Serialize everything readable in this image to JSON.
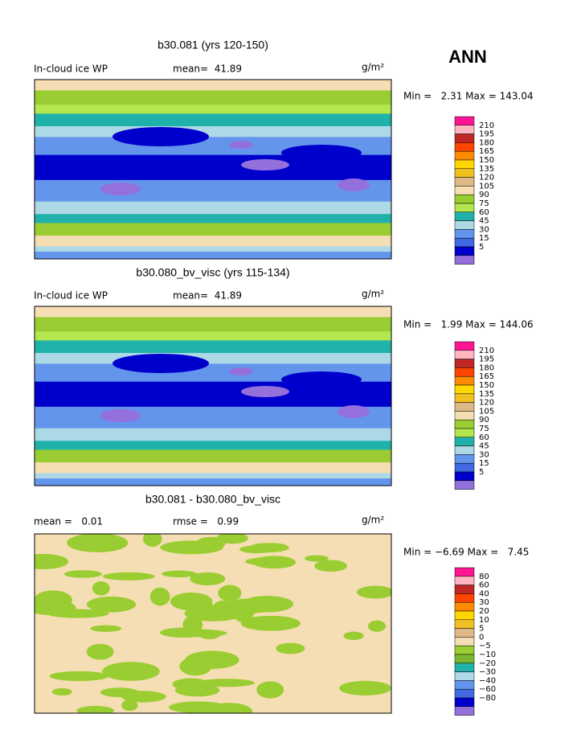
{
  "header": {
    "season": "ANN"
  },
  "panels": [
    {
      "title": "b30.081 (yrs 120-150)",
      "left_text": "In-cloud ice WP",
      "middle_text": "mean=  41.89",
      "units": "g/m²",
      "min_max": "Min =   2.31 Max = 143.04",
      "colorbar": {
        "labels": [
          "210",
          "195",
          "180",
          "165",
          "150",
          "135",
          "120",
          "105",
          "90",
          "75",
          "60",
          "45",
          "30",
          "15",
          "5"
        ],
        "colors": [
          "#ff1493",
          "#ffb6c1",
          "#c02828",
          "#ff4500",
          "#ff8c00",
          "#ffd700",
          "#f0c020",
          "#deb887",
          "#f5deb3",
          "#9acd32",
          "#b4e650",
          "#20b2aa",
          "#add8e6",
          "#6495ed",
          "#4169e1",
          "#0000cd",
          "#9370db"
        ]
      }
    },
    {
      "title": "b30.080_bv_visc (yrs 115-134)",
      "left_text": "In-cloud ice WP",
      "middle_text": "mean=  41.89",
      "units": "g/m²",
      "min_max": "Min =   1.99 Max = 144.06",
      "colorbar": {
        "labels": [
          "210",
          "195",
          "180",
          "165",
          "150",
          "135",
          "120",
          "105",
          "90",
          "75",
          "60",
          "45",
          "30",
          "15",
          "5"
        ],
        "colors": [
          "#ff1493",
          "#ffb6c1",
          "#c02828",
          "#ff4500",
          "#ff8c00",
          "#ffd700",
          "#f0c020",
          "#deb887",
          "#f5deb3",
          "#9acd32",
          "#b4e650",
          "#20b2aa",
          "#add8e6",
          "#6495ed",
          "#4169e1",
          "#0000cd",
          "#9370db"
        ]
      }
    },
    {
      "title": "b30.081 - b30.080_bv_visc",
      "left_text": "mean =   0.01",
      "middle_text": "rmse =   0.99",
      "units": "g/m²",
      "min_max": "Min = −6.69 Max =   7.45",
      "colorbar": {
        "labels": [
          "80",
          "60",
          "40",
          "30",
          "20",
          "10",
          "5",
          "0",
          "−5",
          "−10",
          "−20",
          "−30",
          "−40",
          "−60",
          "−80"
        ],
        "colors": [
          "#ff1493",
          "#ffb6c1",
          "#c02828",
          "#ff4500",
          "#ff8c00",
          "#ffd700",
          "#f0c020",
          "#deb887",
          "#f5deb3",
          "#9acd32",
          "#7cb82f",
          "#20b2aa",
          "#add8e6",
          "#6495ed",
          "#4169e1",
          "#0000cd",
          "#9370db"
        ]
      }
    }
  ]
}
